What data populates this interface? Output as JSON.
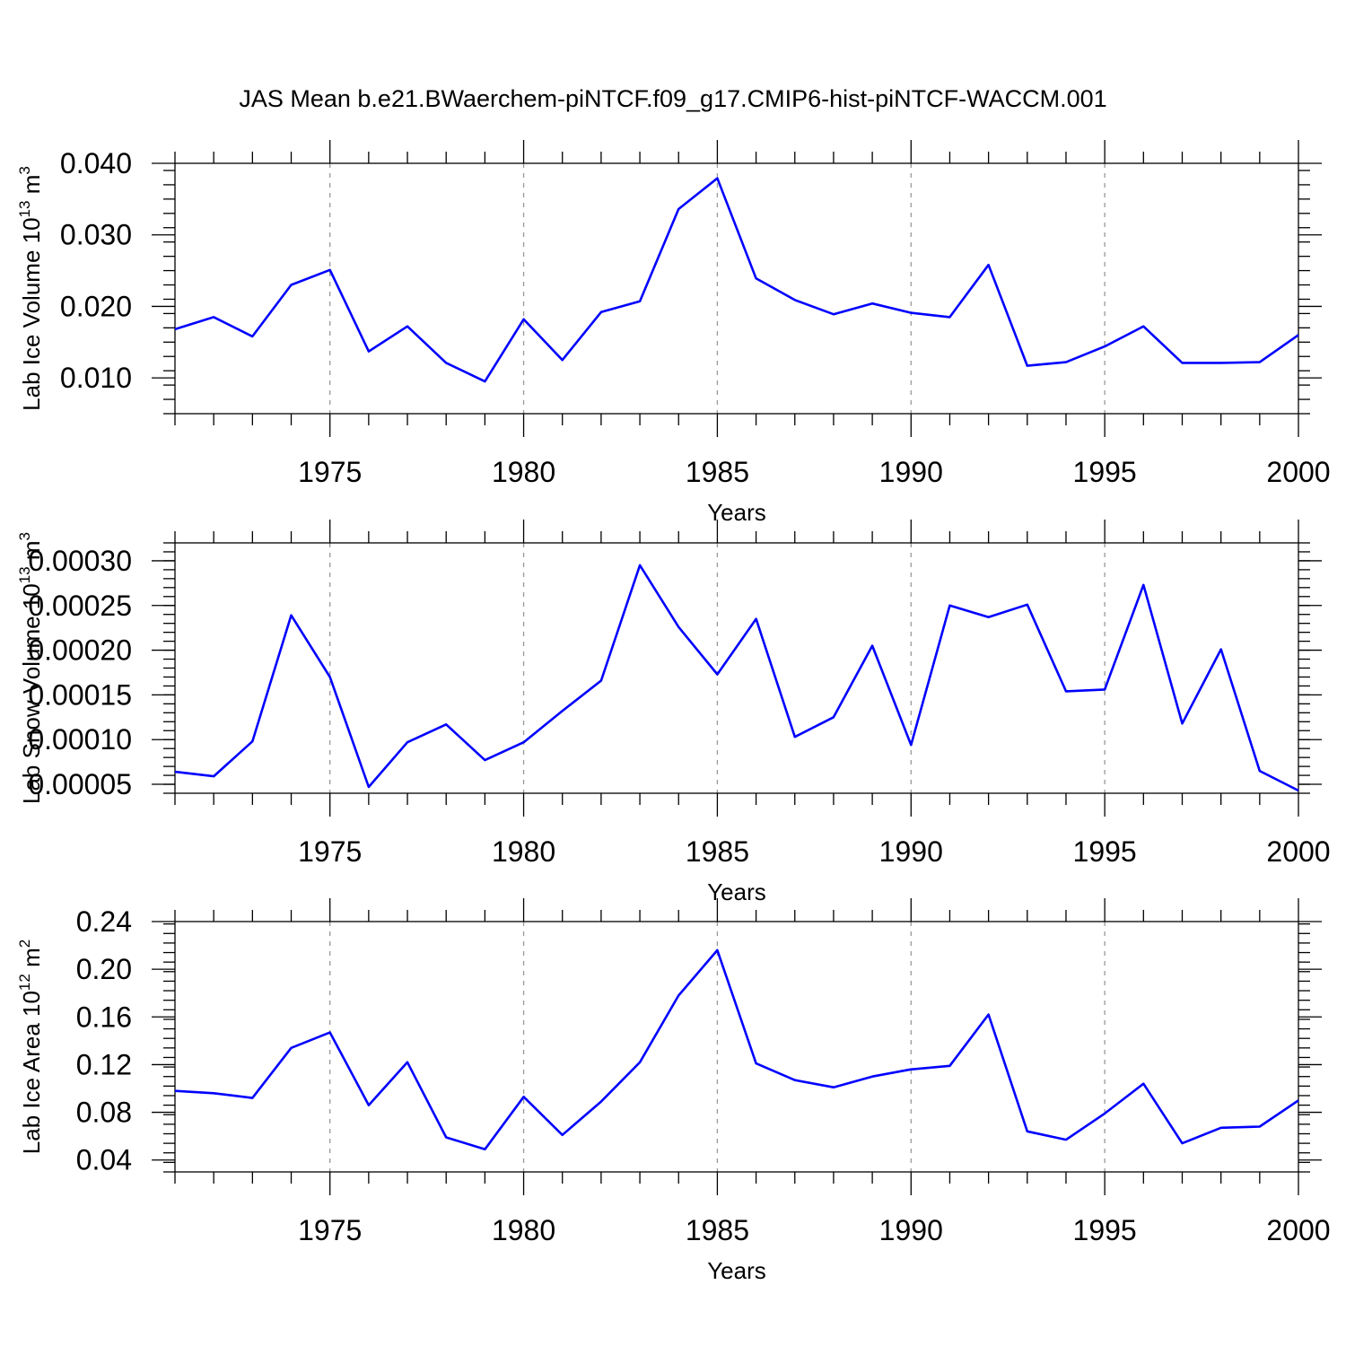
{
  "title": "JAS Mean b.e21.BWaerchem-piNTCF.f09_g17.CMIP6-hist-piNTCF-WACCM.001",
  "colors": {
    "series": "#0000ff",
    "grid": "#999999",
    "axis": "#000000"
  },
  "chart_data": [
    {
      "type": "line",
      "ylabel_main": "Lab Ice Volume 10",
      "ylabel_exp": "13",
      "ylabel_unit": " m",
      "ylabel_unit_exp": "3",
      "xlabel": "Years",
      "xlim": [
        1971,
        2000
      ],
      "ylim": [
        0.005,
        0.04
      ],
      "yticks": [
        0.01,
        0.02,
        0.03,
        0.04
      ],
      "ytick_labels": [
        "0.010",
        "0.020",
        "0.030",
        "0.040"
      ],
      "yminor_step": 0.002,
      "xticks": [
        1975,
        1980,
        1985,
        1990,
        1995,
        2000
      ],
      "xtick_labels": [
        "1975",
        "1980",
        "1985",
        "1990",
        "1995",
        "2000"
      ],
      "x": [
        1971,
        1972,
        1973,
        1974,
        1975,
        1976,
        1977,
        1978,
        1979,
        1980,
        1981,
        1982,
        1983,
        1984,
        1985,
        1986,
        1987,
        1988,
        1989,
        1990,
        1991,
        1992,
        1993,
        1994,
        1995,
        1996,
        1997,
        1998,
        1999,
        2000
      ],
      "values": [
        0.0168,
        0.0185,
        0.0158,
        0.023,
        0.0251,
        0.0137,
        0.0172,
        0.0121,
        0.0095,
        0.0182,
        0.0125,
        0.0192,
        0.0207,
        0.0336,
        0.0379,
        0.0239,
        0.0209,
        0.0189,
        0.0204,
        0.0191,
        0.0185,
        0.0258,
        0.0117,
        0.0122,
        0.0144,
        0.0172,
        0.0121,
        0.0121,
        0.0122,
        0.016
      ]
    },
    {
      "type": "line",
      "ylabel_main": "Lab Snow Volume 10",
      "ylabel_exp": "13",
      "ylabel_unit": " m",
      "ylabel_unit_exp": "3",
      "xlabel": "Years",
      "xlim": [
        1971,
        2000
      ],
      "ylim": [
        4e-05,
        0.00032
      ],
      "yticks": [
        5e-05,
        0.0001,
        0.00015,
        0.0002,
        0.00025,
        0.0003
      ],
      "ytick_labels": [
        "0.00005",
        "0.00010",
        "0.00015",
        "0.00020",
        "0.00025",
        "0.00030"
      ],
      "yminor_step": 1e-05,
      "xticks": [
        1975,
        1980,
        1985,
        1990,
        1995,
        2000
      ],
      "xtick_labels": [
        "1975",
        "1980",
        "1985",
        "1990",
        "1995",
        "2000"
      ],
      "x": [
        1971,
        1972,
        1973,
        1974,
        1975,
        1976,
        1977,
        1978,
        1979,
        1980,
        1981,
        1982,
        1983,
        1984,
        1985,
        1986,
        1987,
        1988,
        1989,
        1990,
        1991,
        1992,
        1993,
        1994,
        1995,
        1996,
        1997,
        1998,
        1999,
        2000
      ],
      "values": [
        6.4e-05,
        5.9e-05,
        9.8e-05,
        0.000239,
        0.00017,
        4.7e-05,
        9.7e-05,
        0.000117,
        7.7e-05,
        9.7e-05,
        0.000132,
        0.000166,
        0.000295,
        0.000226,
        0.000173,
        0.000235,
        0.000103,
        0.000125,
        0.000205,
        9.4e-05,
        0.00025,
        0.000237,
        0.000251,
        0.000154,
        0.000156,
        0.000273,
        0.000118,
        0.000201,
        6.5e-05,
        4.3e-05
      ]
    },
    {
      "type": "line",
      "ylabel_main": "Lab Ice Area 10",
      "ylabel_exp": "12",
      "ylabel_unit": " m",
      "ylabel_unit_exp": "2",
      "xlabel": "Years",
      "xlim": [
        1971,
        2000
      ],
      "ylim": [
        0.03,
        0.24
      ],
      "yticks": [
        0.04,
        0.08,
        0.12,
        0.16,
        0.2,
        0.24
      ],
      "ytick_labels": [
        "0.04",
        "0.08",
        "0.12",
        "0.16",
        "0.20",
        "0.24"
      ],
      "yminor_step": 0.008,
      "xticks": [
        1975,
        1980,
        1985,
        1990,
        1995,
        2000
      ],
      "xtick_labels": [
        "1975",
        "1980",
        "1985",
        "1990",
        "1995",
        "2000"
      ],
      "x": [
        1971,
        1972,
        1973,
        1974,
        1975,
        1976,
        1977,
        1978,
        1979,
        1980,
        1981,
        1982,
        1983,
        1984,
        1985,
        1986,
        1987,
        1988,
        1989,
        1990,
        1991,
        1992,
        1993,
        1994,
        1995,
        1996,
        1997,
        1998,
        1999,
        2000
      ],
      "values": [
        0.098,
        0.096,
        0.092,
        0.134,
        0.147,
        0.086,
        0.122,
        0.059,
        0.049,
        0.093,
        0.061,
        0.089,
        0.122,
        0.178,
        0.216,
        0.121,
        0.107,
        0.101,
        0.11,
        0.116,
        0.119,
        0.162,
        0.064,
        0.057,
        0.079,
        0.104,
        0.054,
        0.067,
        0.068,
        0.09
      ]
    }
  ]
}
